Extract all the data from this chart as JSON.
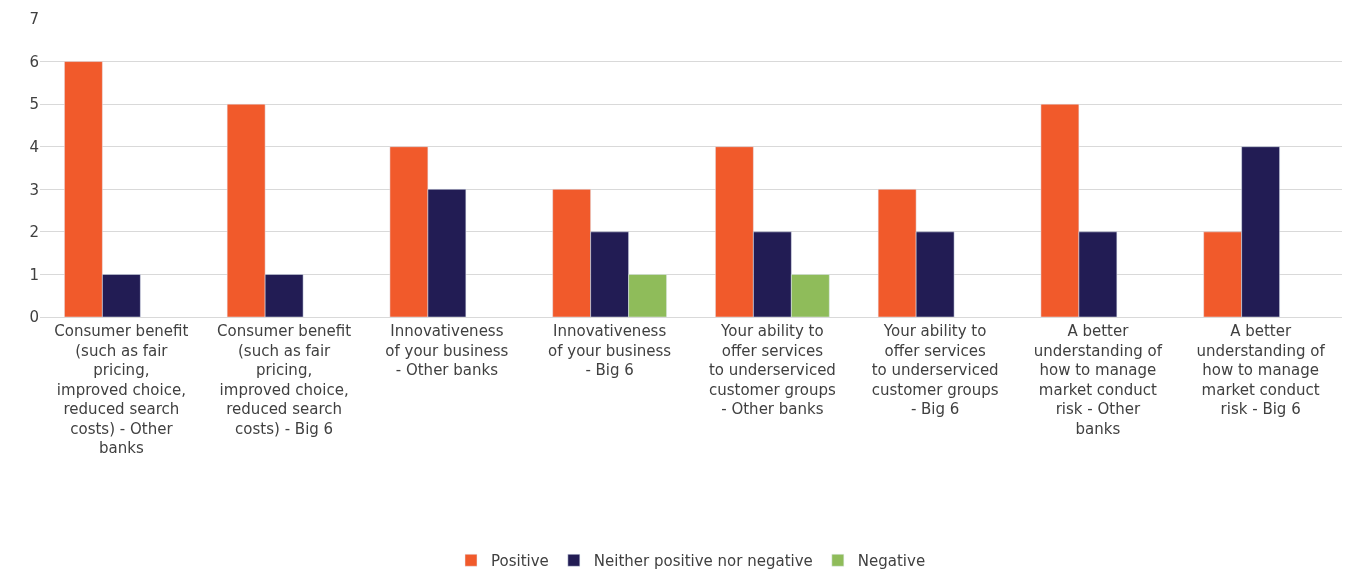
{
  "chart_data": {
    "type": "bar",
    "categories": [
      "Consumer benefit (such as fair pricing, improved choice, reduced search costs) - Other banks",
      "Consumer benefit (such as fair pricing, improved choice, reduced search costs) - Big 6",
      "Innovativeness of your business - Other banks",
      "Innovativeness of your business - Big 6",
      "Your ability to offer services to underserviced customer groups - Other banks",
      "Your ability to offer services to underserviced customer groups - Big 6",
      "A better understanding of how to manage market conduct risk - Other banks",
      "A better understanding of how to manage market conduct risk - Big 6"
    ],
    "series": [
      {
        "name": "Positive",
        "color": "#f15a2b",
        "values": [
          6,
          5,
          4,
          3,
          4,
          3,
          5,
          2
        ]
      },
      {
        "name": "Neither positive nor negative",
        "color": "#221c54",
        "values": [
          1,
          1,
          3,
          2,
          2,
          2,
          2,
          4
        ]
      },
      {
        "name": "Negative",
        "color": "#8fbc5a",
        "values": [
          null,
          null,
          null,
          1,
          1,
          null,
          null,
          null
        ]
      }
    ],
    "ylim": [
      0,
      7
    ],
    "yticks": [
      0,
      1,
      2,
      3,
      4,
      5,
      6,
      7
    ],
    "grid": "y",
    "legend": "bottom"
  }
}
